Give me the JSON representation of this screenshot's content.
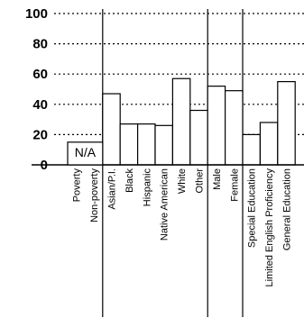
{
  "chart_data": {
    "type": "bar",
    "categories": [
      "Poverty",
      "Non-poverty",
      "Asian/P.I.",
      "Black",
      "Hispanic",
      "Native American",
      "White",
      "Other",
      "Male",
      "Female",
      "Special Education",
      "Limited English Proficiency",
      "General Education"
    ],
    "values": [
      null,
      null,
      47,
      27,
      27,
      26,
      57,
      36,
      52,
      49,
      20,
      28,
      55
    ],
    "ylim": [
      0,
      100
    ],
    "yticks": [
      0,
      20,
      40,
      60,
      80,
      100
    ],
    "grid": true,
    "na_label": "N/A",
    "title": "",
    "xlabel": "",
    "ylabel": ""
  }
}
